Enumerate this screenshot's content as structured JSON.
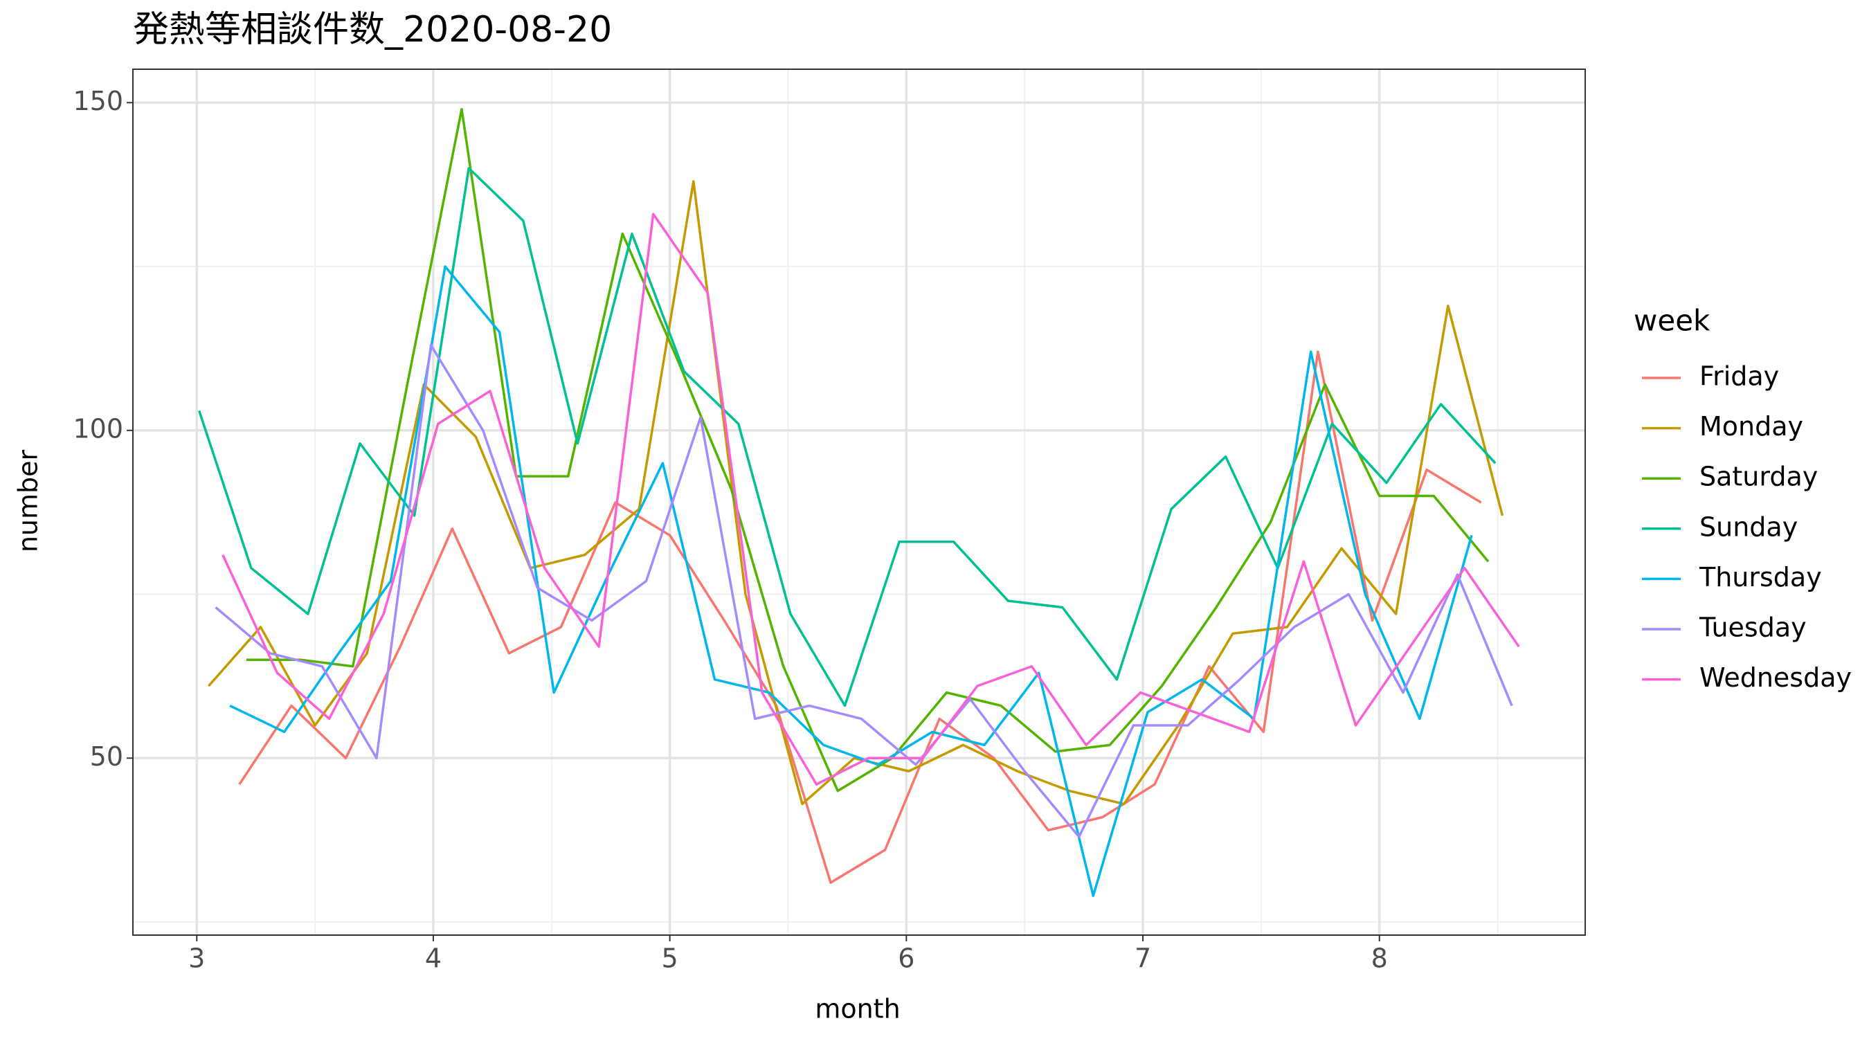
{
  "chart_data": {
    "type": "line",
    "title": "発熱等相談件数_2020-08-20",
    "x_label": "month",
    "y_label": "number",
    "legend_title": "week",
    "xlim": [
      2.73,
      8.87
    ],
    "xticks": [
      3,
      4,
      5,
      6,
      7,
      8
    ],
    "ylim": [
      23,
      155.1
    ],
    "yticks": [
      50,
      100,
      150
    ],
    "grid": true,
    "series": [
      {
        "name": "Friday",
        "color": "#F8766D",
        "x": [
          3.18,
          3.4,
          3.63,
          3.86,
          4.08,
          4.32,
          4.54,
          4.77,
          5.0,
          5.23,
          5.45,
          5.68,
          5.91,
          6.14,
          6.37,
          6.6,
          6.83,
          7.05,
          7.28,
          7.51,
          7.74,
          7.97,
          8.2,
          8.43
        ],
        "values": [
          46,
          58,
          50,
          67,
          85,
          66,
          70,
          89,
          84,
          71,
          58,
          31,
          36,
          56,
          50,
          39,
          41,
          46,
          64,
          54,
          112,
          71,
          94,
          89
        ]
      },
      {
        "name": "Monday",
        "color": "#C49A00",
        "x": [
          3.05,
          3.27,
          3.5,
          3.72,
          3.96,
          4.18,
          4.41,
          4.64,
          4.87,
          5.1,
          5.32,
          5.56,
          5.78,
          6.01,
          6.24,
          6.47,
          6.69,
          6.92,
          7.15,
          7.38,
          7.61,
          7.84,
          8.07,
          8.29,
          8.52
        ],
        "values": [
          61,
          70,
          55,
          66,
          107,
          99,
          79,
          81,
          88,
          138,
          75,
          43,
          50,
          48,
          52,
          48,
          45,
          43,
          55,
          69,
          70,
          82,
          72,
          119,
          87
        ]
      },
      {
        "name": "Saturday",
        "color": "#53B400",
        "x": [
          3.21,
          3.44,
          3.66,
          3.89,
          4.12,
          4.35,
          4.57,
          4.8,
          5.03,
          5.26,
          5.48,
          5.71,
          5.94,
          6.17,
          6.4,
          6.63,
          6.86,
          7.08,
          7.31,
          7.54,
          7.77,
          8.0,
          8.23,
          8.46
        ],
        "values": [
          65,
          65,
          64,
          107,
          149,
          93,
          93,
          130,
          111,
          91,
          64,
          45,
          50,
          60,
          58,
          51,
          52,
          61,
          73,
          86,
          107,
          90,
          90,
          80
        ]
      },
      {
        "name": "Sunday",
        "color": "#00C094",
        "x": [
          3.01,
          3.23,
          3.47,
          3.69,
          3.92,
          4.15,
          4.38,
          4.61,
          4.84,
          5.06,
          5.29,
          5.51,
          5.74,
          5.97,
          6.2,
          6.43,
          6.66,
          6.89,
          7.12,
          7.35,
          7.57,
          7.8,
          8.03,
          8.26,
          8.49
        ],
        "values": [
          103,
          79,
          72,
          98,
          87,
          140,
          132,
          98,
          130,
          109,
          101,
          72,
          58,
          83,
          83,
          74,
          73,
          62,
          88,
          96,
          79,
          101,
          92,
          104,
          95
        ]
      },
      {
        "name": "Thursday",
        "color": "#00B6EB",
        "x": [
          3.14,
          3.37,
          3.6,
          3.82,
          4.05,
          4.28,
          4.51,
          4.74,
          4.97,
          5.19,
          5.42,
          5.65,
          5.88,
          6.11,
          6.33,
          6.56,
          6.79,
          7.02,
          7.25,
          7.47,
          7.71,
          7.94,
          8.17,
          8.39
        ],
        "values": [
          58,
          54,
          66,
          77,
          125,
          115,
          60,
          78,
          95,
          62,
          60,
          52,
          49,
          54,
          52,
          63,
          29,
          57,
          62,
          56,
          112,
          75,
          56,
          84
        ]
      },
      {
        "name": "Tuesday",
        "color": "#A58AFF",
        "x": [
          3.08,
          3.31,
          3.53,
          3.76,
          3.99,
          4.21,
          4.44,
          4.67,
          4.9,
          5.13,
          5.36,
          5.59,
          5.81,
          6.04,
          6.27,
          6.5,
          6.73,
          6.96,
          7.19,
          7.41,
          7.64,
          7.87,
          8.1,
          8.33,
          8.56
        ],
        "values": [
          73,
          66,
          64,
          50,
          113,
          100,
          76,
          71,
          77,
          102,
          56,
          58,
          56,
          49,
          59,
          48,
          38,
          55,
          55,
          62,
          70,
          75,
          60,
          78,
          58
        ]
      },
      {
        "name": "Wednesday",
        "color": "#FB61D7",
        "x": [
          3.11,
          3.34,
          3.56,
          3.79,
          4.02,
          4.24,
          4.47,
          4.7,
          4.93,
          5.16,
          5.39,
          5.62,
          5.84,
          6.07,
          6.3,
          6.53,
          6.76,
          6.99,
          7.22,
          7.45,
          7.68,
          7.9,
          8.13,
          8.36,
          8.59
        ],
        "values": [
          81,
          63,
          56,
          72,
          101,
          106,
          79,
          67,
          133,
          121,
          60,
          46,
          50,
          50,
          61,
          64,
          52,
          60,
          57,
          54,
          80,
          55,
          67,
          79,
          67
        ]
      }
    ]
  }
}
